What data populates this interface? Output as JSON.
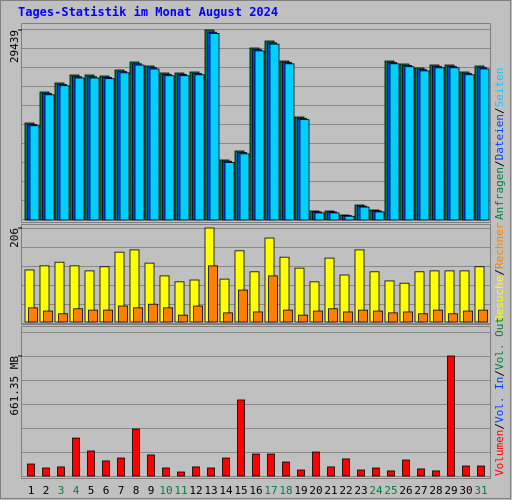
{
  "chart_data": [
    {
      "type": "bar",
      "title": "Tages-Statistik im Monat August 2024",
      "ylim": [
        0,
        29439
      ],
      "yticks": [
        29439
      ],
      "legend_separator": "/",
      "series": [
        {
          "name": "Anfragen",
          "color": "#008040",
          "values": [
            15029,
            19830,
            21227,
            22466,
            22466,
            22311,
            23241,
            24480,
            23861,
            22776,
            22776,
            22931,
            29439,
            9296,
            10691,
            26650,
            27734,
            24635,
            15959,
            1394,
            1394,
            775,
            2324,
            1549,
            24635,
            24170,
            23551,
            24016,
            24016,
            22931,
            23861
          ]
        },
        {
          "name": "Dateien",
          "color": "#0040ff",
          "values": [
            14800,
            19600,
            21000,
            22200,
            22200,
            22100,
            23000,
            24200,
            23600,
            22550,
            22550,
            22700,
            29100,
            9100,
            10450,
            26400,
            27450,
            24400,
            15750,
            1250,
            1250,
            680,
            2150,
            1400,
            24400,
            23950,
            23300,
            23780,
            23780,
            22700,
            23600
          ]
        },
        {
          "name": "Seiten",
          "color": "#00d0ff",
          "values": [
            14600,
            19400,
            20800,
            22000,
            22000,
            21900,
            22800,
            24000,
            23400,
            22350,
            22350,
            22500,
            28900,
            8900,
            10250,
            26200,
            27250,
            24200,
            15550,
            1100,
            1100,
            580,
            2000,
            1250,
            24200,
            23750,
            23100,
            23580,
            23580,
            22500,
            23400
          ]
        }
      ]
    },
    {
      "type": "bar",
      "ylim": [
        0,
        206
      ],
      "yticks": [
        206
      ],
      "legend_separator": "/",
      "series": [
        {
          "name": "Besuche",
          "color": "#ffff00",
          "values": [
            114,
            123,
            131,
            123,
            112,
            121,
            153,
            158,
            129,
            101,
            88,
            92,
            206,
            94,
            156,
            110,
            184,
            142,
            118,
            88,
            140,
            103,
            158,
            110,
            90,
            85,
            110,
            112,
            112,
            112,
            121
          ]
        },
        {
          "name": "Rechner",
          "color": "#ff8000",
          "values": [
            31,
            24,
            18,
            29,
            26,
            26,
            35,
            31,
            39,
            31,
            15,
            35,
            123,
            20,
            70,
            22,
            101,
            26,
            15,
            24,
            29,
            22,
            26,
            24,
            20,
            22,
            18,
            26,
            18,
            24,
            26
          ]
        }
      ]
    },
    {
      "type": "bar",
      "ylim": [
        0,
        661.35
      ],
      "yticks": [
        {
          "value": 661.35,
          "label": "661.35 MB"
        }
      ],
      "legend_separator": "/",
      "categories": [
        "1",
        "2",
        "3",
        "4",
        "5",
        "6",
        "7",
        "8",
        "9",
        "10",
        "11",
        "12",
        "13",
        "14",
        "15",
        "16",
        "17",
        "18",
        "19",
        "20",
        "21",
        "22",
        "23",
        "24",
        "25",
        "26",
        "27",
        "28",
        "29",
        "30",
        "31"
      ],
      "category_colors": [
        "#000000",
        "#000000",
        "#008040",
        "#008040",
        "#000000",
        "#000000",
        "#000000",
        "#000000",
        "#000000",
        "#008040",
        "#008040",
        "#000000",
        "#000000",
        "#000000",
        "#000000",
        "#000000",
        "#008040",
        "#008040",
        "#000000",
        "#000000",
        "#000000",
        "#000000",
        "#000000",
        "#008040",
        "#008040",
        "#000000",
        "#000000",
        "#000000",
        "#000000",
        "#000000",
        "#008040"
      ],
      "series": [
        {
          "name": "Volumen",
          "color": "#ff0000",
          "values": [
            66,
            44,
            50,
            209,
            138,
            83,
            99,
            259,
            116,
            44,
            22,
            50,
            44,
            99,
            419,
            121,
            121,
            77,
            33,
            132,
            50,
            94,
            33,
            44,
            28,
            88,
            39,
            28,
            661.35,
            55,
            55
          ]
        }
      ],
      "extra_legend": [
        {
          "name": "Vol. In",
          "color": "#0040ff"
        },
        {
          "name": "Vol. Out",
          "color": "#008040"
        }
      ]
    }
  ]
}
